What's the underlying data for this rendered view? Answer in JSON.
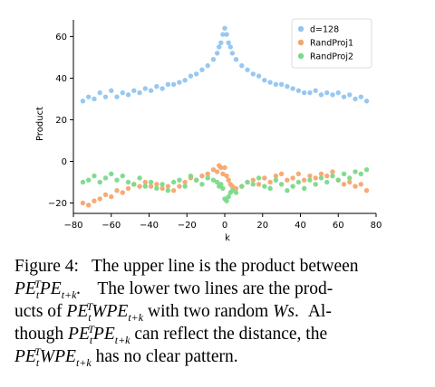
{
  "chart_data": {
    "type": "scatter",
    "title": "",
    "xlabel": "k",
    "ylabel": "Product",
    "xlim": [
      -80,
      80
    ],
    "ylim": [
      -25,
      68
    ],
    "xticks": [
      -80,
      -60,
      -40,
      -20,
      0,
      20,
      40,
      60,
      80
    ],
    "yticks": [
      -20,
      0,
      20,
      40,
      60
    ],
    "xtick_labels": [
      "−80",
      "−60",
      "−40",
      "−20",
      "0",
      "20",
      "40",
      "60",
      "80"
    ],
    "ytick_labels": [
      "−20",
      "0",
      "20",
      "40",
      "60"
    ],
    "legend_position": "top-right",
    "series": [
      {
        "name": "d=128",
        "color": "#92c5f0",
        "x": [
          -75,
          -72,
          -69,
          -66,
          -63,
          -60,
          -57,
          -54,
          -51,
          -48,
          -45,
          -42,
          -39,
          -36,
          -33,
          -30,
          -27,
          -24,
          -21,
          -18,
          -15,
          -12,
          -9,
          -6,
          -4,
          -3,
          -2,
          -1,
          0,
          1,
          2,
          3,
          4,
          6,
          9,
          12,
          15,
          18,
          21,
          24,
          27,
          30,
          33,
          36,
          39,
          42,
          45,
          48,
          51,
          54,
          57,
          60,
          63,
          66,
          69,
          72,
          75
        ],
        "y": [
          29,
          31,
          30,
          33,
          31,
          34,
          31,
          33,
          32,
          34,
          33,
          35,
          34,
          36,
          35,
          37,
          37,
          38,
          39,
          41,
          42,
          44,
          46,
          49,
          52,
          55,
          57,
          61,
          64,
          61,
          57,
          55,
          52,
          49,
          46,
          44,
          42,
          41,
          39,
          38,
          37,
          37,
          36,
          35,
          34,
          33,
          33,
          34,
          32,
          33,
          32,
          33,
          31,
          32,
          30,
          31,
          29
        ]
      },
      {
        "name": "RandProj1",
        "color": "#f4a66f",
        "x": [
          -75,
          -72,
          -69,
          -66,
          -63,
          -60,
          -57,
          -54,
          -51,
          -48,
          -45,
          -42,
          -39,
          -36,
          -33,
          -30,
          -27,
          -24,
          -21,
          -18,
          -15,
          -12,
          -9,
          -6,
          -4,
          -3,
          -2,
          -1,
          0,
          1,
          2,
          3,
          4,
          6,
          9,
          12,
          15,
          18,
          21,
          24,
          27,
          30,
          33,
          36,
          39,
          42,
          45,
          48,
          51,
          54,
          57,
          60,
          63,
          66,
          69,
          72,
          75
        ],
        "y": [
          -20,
          -21,
          -19,
          -18,
          -16,
          -17,
          -14,
          -15,
          -13,
          -11,
          -12,
          -10,
          -12,
          -11,
          -13,
          -12,
          -14,
          -12,
          -10,
          -8,
          -9,
          -7,
          -6,
          -4,
          -5,
          -2,
          -3,
          -6,
          -3,
          -7,
          -9,
          -11,
          -12,
          -13,
          -12,
          -10,
          -9,
          -11,
          -8,
          -10,
          -7,
          -6,
          -9,
          -8,
          -6,
          -9,
          -7,
          -8,
          -6,
          -7,
          -5,
          -9,
          -11,
          -10,
          -12,
          -11,
          -14
        ]
      },
      {
        "name": "RandProj2",
        "color": "#7bd98b",
        "x": [
          -75,
          -72,
          -69,
          -66,
          -63,
          -60,
          -57,
          -54,
          -51,
          -48,
          -45,
          -42,
          -39,
          -36,
          -33,
          -30,
          -27,
          -24,
          -21,
          -18,
          -15,
          -12,
          -9,
          -6,
          -4,
          -3,
          -2,
          -1,
          0,
          1,
          2,
          3,
          4,
          6,
          9,
          12,
          15,
          18,
          21,
          24,
          27,
          30,
          33,
          36,
          39,
          42,
          45,
          48,
          51,
          54,
          57,
          60,
          63,
          66,
          69,
          72,
          75
        ],
        "y": [
          -10,
          -9,
          -7,
          -10,
          -8,
          -6,
          -9,
          -7,
          -10,
          -11,
          -8,
          -12,
          -10,
          -13,
          -11,
          -14,
          -10,
          -9,
          -12,
          -7,
          -9,
          -11,
          -8,
          -9,
          -10,
          -12,
          -11,
          -13,
          -18,
          -19,
          -17,
          -15,
          -14,
          -15,
          -12,
          -10,
          -11,
          -8,
          -12,
          -13,
          -9,
          -11,
          -14,
          -12,
          -10,
          -13,
          -9,
          -11,
          -8,
          -10,
          -7,
          -9,
          -6,
          -8,
          -5,
          -6,
          -4
        ]
      }
    ]
  },
  "caption": {
    "line1": {
      "prefix": "Figure 4:",
      "text": "The upper line is the product between"
    },
    "line2": {
      "pe": "PE",
      "t": "t",
      "T": "T",
      "tk": "t+k",
      "rest": "The lower two lines are the prod-"
    },
    "line3": {
      "text1": "ucts of",
      "pe": "PE",
      "w": "W",
      "t": "t",
      "T": "T",
      "tk": "t+k",
      "text2": "with two random",
      "ws": "Ws",
      "text3": "Al-"
    },
    "line4": {
      "text1": "though",
      "pe": "PE",
      "t": "t",
      "T": "T",
      "tk": "t+k",
      "text2": "can reflect the distance, the"
    },
    "line5": {
      "pe": "PE",
      "w": "W",
      "t": "t",
      "T": "T",
      "tk": "t+k",
      "text2": "has no clear pattern."
    }
  }
}
